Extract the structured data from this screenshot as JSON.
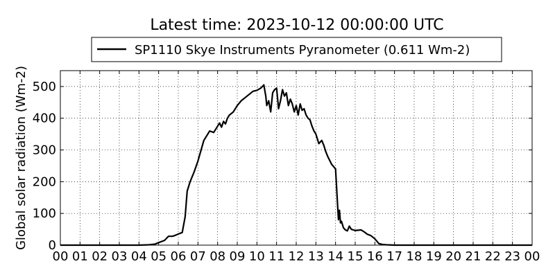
{
  "chart_data": {
    "type": "line",
    "title": "Latest time: 2023-10-12 00:00:00 UTC",
    "xlabel": "",
    "ylabel": "Global solar radiation (Wm-2)",
    "xlim": [
      0,
      24
    ],
    "ylim": [
      0,
      550
    ],
    "grid": true,
    "legend_position": "top-center",
    "x_tick_labels": [
      "00",
      "01",
      "02",
      "03",
      "04",
      "05",
      "06",
      "07",
      "08",
      "09",
      "10",
      "11",
      "12",
      "13",
      "14",
      "15",
      "16",
      "17",
      "18",
      "19",
      "20",
      "21",
      "22",
      "23",
      "00"
    ],
    "y_ticks": [
      0,
      100,
      200,
      300,
      400,
      500
    ],
    "series": [
      {
        "name": "SP1110 Skye Instruments Pyranometer (0.611 Wm-2)",
        "color": "#000000",
        "x": [
          0,
          4.0,
          4.5,
          4.8,
          5.0,
          5.3,
          5.5,
          5.7,
          5.8,
          6.0,
          6.2,
          6.35,
          6.45,
          6.5,
          6.6,
          6.8,
          7.0,
          7.3,
          7.6,
          7.8,
          8.0,
          8.1,
          8.2,
          8.3,
          8.4,
          8.5,
          8.6,
          8.7,
          8.8,
          9.0,
          9.2,
          9.5,
          9.8,
          10.0,
          10.2,
          10.35,
          10.45,
          10.5,
          10.6,
          10.7,
          10.8,
          10.9,
          11.0,
          11.1,
          11.2,
          11.3,
          11.4,
          11.5,
          11.6,
          11.7,
          11.8,
          11.9,
          12.0,
          12.1,
          12.2,
          12.3,
          12.4,
          12.5,
          12.6,
          12.7,
          12.8,
          12.9,
          13.0,
          13.15,
          13.3,
          13.4,
          13.5,
          13.6,
          13.8,
          14.0,
          14.1,
          14.15,
          14.2,
          14.25,
          14.3,
          14.35,
          14.4,
          14.5,
          14.6,
          14.7,
          14.8,
          14.9,
          15.0,
          15.3,
          15.5,
          15.6,
          15.8,
          16.0,
          16.2,
          16.4,
          16.6,
          17.0,
          18.0,
          24.0
        ],
        "values": [
          0,
          0,
          1,
          3,
          8,
          15,
          28,
          28,
          30,
          35,
          40,
          90,
          170,
          180,
          200,
          230,
          265,
          330,
          360,
          355,
          375,
          385,
          372,
          390,
          382,
          400,
          410,
          415,
          420,
          440,
          455,
          470,
          485,
          488,
          495,
          505,
          470,
          440,
          455,
          420,
          480,
          490,
          495,
          430,
          455,
          490,
          470,
          480,
          440,
          460,
          445,
          420,
          440,
          410,
          445,
          425,
          430,
          410,
          400,
          395,
          375,
          360,
          350,
          320,
          330,
          315,
          295,
          280,
          255,
          240,
          130,
          80,
          110,
          70,
          75,
          65,
          55,
          48,
          45,
          60,
          50,
          48,
          46,
          48,
          40,
          35,
          30,
          20,
          5,
          2,
          1,
          0,
          0,
          0
        ]
      }
    ]
  }
}
